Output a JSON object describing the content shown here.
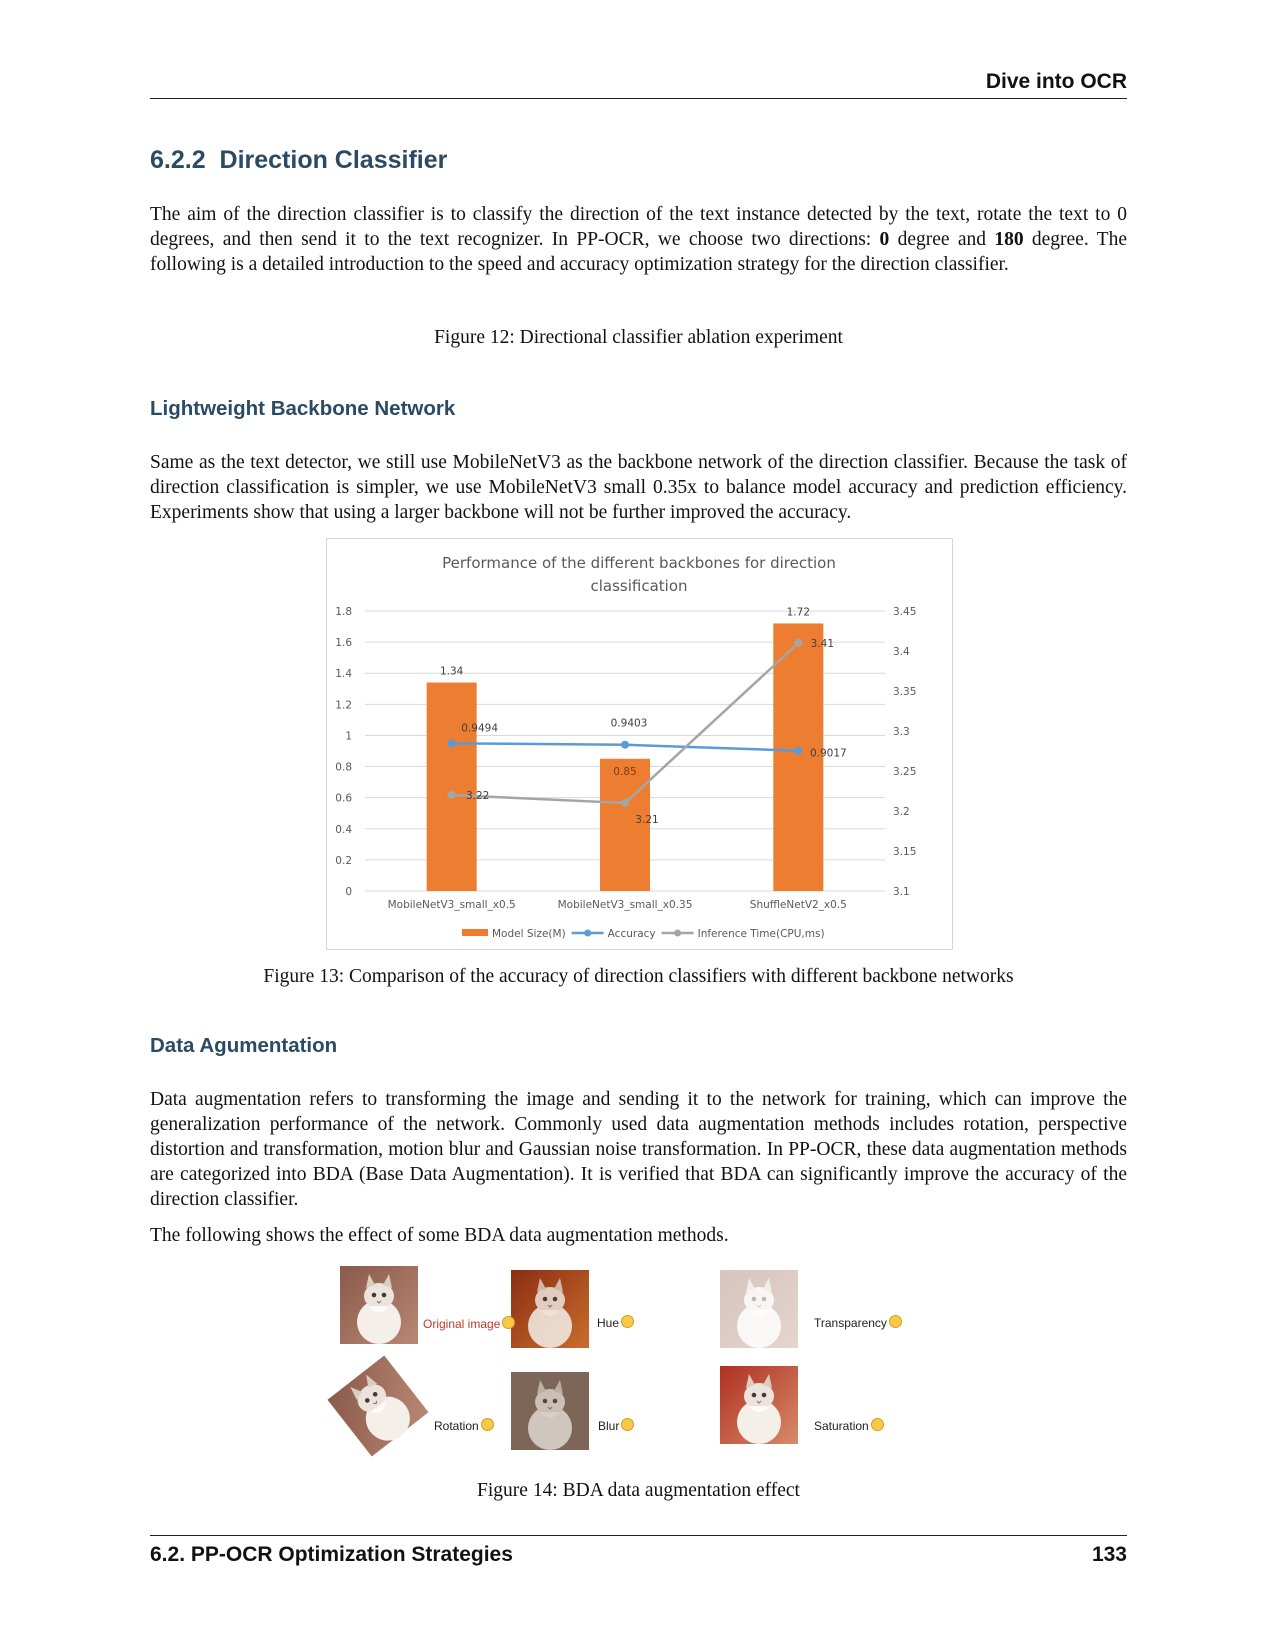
{
  "header": {
    "title": "Dive into OCR"
  },
  "section": {
    "number": "6.2.2",
    "title": "Direction Classifier"
  },
  "intro_html": "The aim of the direction classifier is to classify the direction of the text instance detected by the text, rotate the text to 0 degrees, and then send it to the text recognizer. In PP-OCR, we choose two directions: <b>0</b> degree and <b>180</b> degree. The following is a detailed introduction to the speed and accuracy optimization strategy for the direction classifier.",
  "fig12_caption": "Figure 12: Directional classifier ablation experiment",
  "backbone": {
    "heading": "Lightweight Backbone Network",
    "text": "Same as the text detector, we still use MobileNetV3 as the backbone network of the direction classifier. Because the task of direction classification is simpler, we use MobileNetV3 small 0.35x to balance model accuracy and prediction efficiency. Experiments show that using a larger backbone will not be further improved the accuracy."
  },
  "chart_data": {
    "type": "bar",
    "title_lines": [
      "Performance of the different backbones for direction",
      "classification"
    ],
    "categories": [
      "MobileNetV3_small_x0.5",
      "MobileNetV3_small_x0.35",
      "ShuffleNetV2_x0.5"
    ],
    "series": [
      {
        "name": "Model Size(M)",
        "type": "bar",
        "axis": "left",
        "color": "#ed7d31",
        "values": [
          1.34,
          0.85,
          1.72
        ],
        "labels": [
          "1.34",
          "0.85",
          "1.72"
        ]
      },
      {
        "name": "Accuracy",
        "type": "line",
        "axis": "left",
        "color": "#5b9bd5",
        "values": [
          0.9494,
          0.9403,
          0.9017
        ],
        "labels": [
          "0.9494",
          "0.9403",
          "0.9017"
        ]
      },
      {
        "name": "Inference Time(CPU,ms)",
        "type": "line",
        "axis": "right",
        "color": "#a5a5a5",
        "values": [
          3.22,
          3.21,
          3.41
        ],
        "labels": [
          "3.22",
          "3.21",
          "3.41"
        ]
      }
    ],
    "y_left": {
      "min": 0,
      "max": 1.8,
      "ticks": [
        "0",
        "0.2",
        "0.4",
        "0.6",
        "0.8",
        "1",
        "1.2",
        "1.4",
        "1.6",
        "1.8"
      ]
    },
    "y_right": {
      "min": 3.1,
      "max": 3.45,
      "ticks": [
        "3.1",
        "3.15",
        "3.2",
        "3.25",
        "3.3",
        "3.35",
        "3.4",
        "3.45"
      ]
    },
    "grid": true,
    "legend": "bottom"
  },
  "fig13_caption": "Figure 13: Comparison of the accuracy of direction classifiers with different backbone networks",
  "augmentation": {
    "heading": "Data Agumentation",
    "text": "Data augmentation refers to transforming the image and sending it to the network for training, which can improve the generalization performance of the network. Commonly used data augmentation methods includes rotation, perspective distortion and transformation, motion blur and Gaussian noise transformation. In PP-OCR, these data augmentation methods are categorized into BDA (Base Data Augmentation). It is verified that BDA can significantly improve the accuracy of the direction classifier.",
    "text2": "The following shows the effect of some BDA data augmentation methods.",
    "labels": [
      "Original image",
      "Hue",
      "Transparency",
      "Rotation",
      "Blur",
      "Saturation"
    ]
  },
  "fig14_caption": "Figure 14: BDA data augmentation effect",
  "footer": {
    "section": "6.2.  PP-OCR Optimization Strategies",
    "page": "133"
  }
}
